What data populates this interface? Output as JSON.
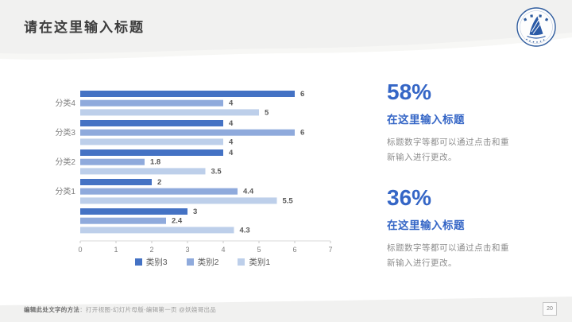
{
  "header": {
    "title": "请在这里输入标题"
  },
  "logo": {
    "icon": "university-seal-icon",
    "ring_color": "#2f5c9e",
    "sail_color": "#2b5aa6"
  },
  "chart_data": {
    "type": "bar",
    "orientation": "horizontal",
    "title": "",
    "categories": [
      "分类4",
      "分类3",
      "分类2",
      "分类1",
      ""
    ],
    "series": [
      {
        "name": "类别3",
        "color": "#4472c4",
        "values": [
          6,
          4,
          4,
          2,
          3
        ]
      },
      {
        "name": "类别2",
        "color": "#8faadc",
        "values": [
          4,
          6,
          1.8,
          4.4,
          2.4
        ]
      },
      {
        "name": "类别1",
        "color": "#bdcfea",
        "values": [
          5,
          4,
          3.5,
          5.5,
          4.3
        ]
      }
    ],
    "xlim": [
      0,
      7
    ],
    "x_ticks": [
      "0",
      "1",
      "2",
      "3",
      "4",
      "5",
      "6",
      "7"
    ],
    "grid": false,
    "value_labels": true,
    "legend_position": "bottom",
    "legend": [
      "类别3",
      "类别2",
      "类别1"
    ]
  },
  "stats": [
    {
      "percent": "58%",
      "heading": "在这里输入标题",
      "body": [
        "标题数字等都可以通过点击和重",
        "新输入进行更改。"
      ]
    },
    {
      "percent": "36%",
      "heading": "在这里输入标题",
      "body": [
        "标题数字等都可以通过点击和重",
        "新输入进行更改。"
      ]
    }
  ],
  "footer": {
    "lead": "编辑此处文字的方法",
    "rest": "：打开视图-幻灯片母版-编辑第一页 @妖娆哥出品",
    "page_number": "20"
  },
  "colors": {
    "accent_blue": "#3566c6",
    "title_gray": "#3d3d3d",
    "band_gray": "#f1f1f0",
    "band_gray_light": "#f7f7f5",
    "axis_line": "#d9d9d9",
    "axis_text": "#7f7f7f",
    "value_label_gray": "#595959"
  }
}
